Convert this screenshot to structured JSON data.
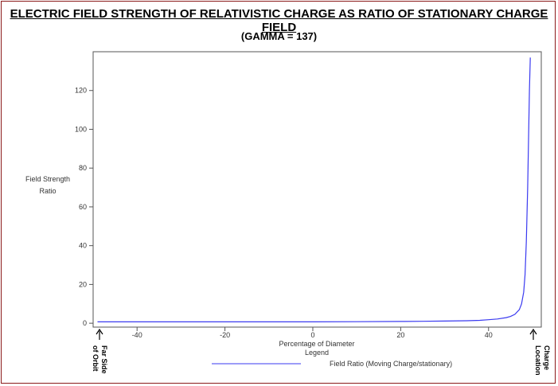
{
  "chart_data": {
    "type": "line",
    "title": "ELECTRIC FIELD STRENGTH OF RELATIVISTIC CHARGE AS RATIO OF STATIONARY CHARGE FIELD",
    "subtitle": "(GAMMA = 137)",
    "xlabel": "Percentage of Diameter",
    "ylabel_lines": [
      "Field Strength",
      "Ratio"
    ],
    "xlim": [
      -50,
      52
    ],
    "ylim": [
      -2,
      140
    ],
    "x_ticks": [
      -40,
      -20,
      0,
      20,
      40
    ],
    "y_ticks": [
      0,
      20,
      40,
      60,
      80,
      100,
      120
    ],
    "legend": {
      "title": "Legend",
      "placement": "bottom",
      "entries": [
        {
          "label": "Field Ratio (Moving Charge/stationary)",
          "color": "#3a3af0"
        }
      ]
    },
    "annotations": {
      "left": [
        "Far Side",
        "of Orbit"
      ],
      "right": [
        "Charge",
        "Location"
      ]
    },
    "series": [
      {
        "name": "Field Ratio (Moving Charge/stationary)",
        "color": "#3a3af0",
        "x": [
          -49,
          -40,
          -30,
          -20,
          -10,
          0,
          10,
          20,
          25,
          30,
          35,
          38,
          40,
          42,
          44,
          45,
          46,
          47,
          47.5,
          48,
          48.3,
          48.6,
          48.9,
          49.1,
          49.3,
          49.5
        ],
        "values": [
          0.7,
          0.7,
          0.7,
          0.7,
          0.7,
          0.7,
          0.8,
          0.9,
          1.0,
          1.1,
          1.3,
          1.5,
          1.8,
          2.2,
          2.9,
          3.5,
          4.6,
          7,
          10,
          16,
          25,
          42,
          70,
          95,
          120,
          137
        ]
      }
    ]
  }
}
